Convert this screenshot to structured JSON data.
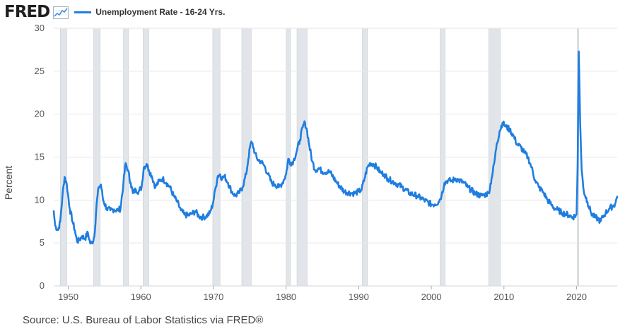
{
  "header": {
    "logo_text": "FRED",
    "logo_icon": "line-chart-icon",
    "series_label": "Unemployment Rate - 16-24 Yrs."
  },
  "source": "Source: U.S. Bureau of Labor Statistics via FRED®",
  "colors": {
    "series": "#1f7de0",
    "recession": "#e1e5ea",
    "grid": "#e6e6e6",
    "text": "#444444"
  },
  "chart_data": {
    "type": "line",
    "title": "Unemployment Rate - 16-24 Yrs.",
    "xlabel": "",
    "ylabel": "Percent",
    "xlim": [
      1948,
      2025.6
    ],
    "ylim": [
      0,
      30
    ],
    "x_ticks": [
      "1950",
      "1960",
      "1970",
      "1980",
      "1990",
      "2000",
      "2010",
      "2020"
    ],
    "y_ticks": [
      "0",
      "5",
      "10",
      "15",
      "20",
      "25",
      "30"
    ],
    "grid": true,
    "legend": "top-left",
    "recessions": [
      [
        1948.9,
        1949.8
      ],
      [
        1953.5,
        1954.4
      ],
      [
        1957.6,
        1958.3
      ],
      [
        1960.3,
        1961.1
      ],
      [
        1969.9,
        1970.9
      ],
      [
        1973.9,
        1975.2
      ],
      [
        1980.0,
        1980.6
      ],
      [
        1981.5,
        1982.9
      ],
      [
        1990.5,
        1991.2
      ],
      [
        2001.2,
        2001.9
      ],
      [
        2007.9,
        2009.5
      ],
      [
        2020.1,
        2020.3
      ]
    ],
    "series": [
      {
        "name": "Unemployment Rate - 16-24 Yrs.",
        "x": [
          1948.0,
          1948.2,
          1948.6,
          1948.9,
          1949.2,
          1949.5,
          1949.8,
          1950.2,
          1950.6,
          1950.9,
          1951.2,
          1951.5,
          1951.9,
          1952.3,
          1952.7,
          1953.0,
          1953.3,
          1953.6,
          1953.9,
          1954.2,
          1954.5,
          1954.8,
          1955.3,
          1955.8,
          1956.3,
          1956.8,
          1957.2,
          1957.6,
          1957.9,
          1958.2,
          1958.6,
          1958.9,
          1959.3,
          1959.7,
          1960.1,
          1960.4,
          1960.8,
          1961.1,
          1961.5,
          1962.0,
          1962.5,
          1963.0,
          1963.5,
          1964.0,
          1964.5,
          1965.0,
          1965.5,
          1966.0,
          1966.5,
          1967.0,
          1967.5,
          1968.0,
          1968.5,
          1969.0,
          1969.5,
          1969.9,
          1970.3,
          1970.6,
          1970.9,
          1971.2,
          1971.5,
          1972.0,
          1972.5,
          1973.0,
          1973.5,
          1974.0,
          1974.5,
          1974.8,
          1975.1,
          1975.3,
          1975.7,
          1976.0,
          1976.5,
          1977.0,
          1977.5,
          1978.0,
          1978.5,
          1979.0,
          1979.5,
          1980.0,
          1980.3,
          1980.6,
          1981.0,
          1981.5,
          1981.9,
          1982.3,
          1982.6,
          1982.9,
          1983.2,
          1983.6,
          1984.0,
          1984.5,
          1985.0,
          1986.0,
          1987.0,
          1988.0,
          1989.0,
          1989.5,
          1990.0,
          1990.4,
          1990.8,
          1991.2,
          1991.6,
          1992.0,
          1992.5,
          1993.0,
          1993.5,
          1994.0,
          1995.0,
          1996.0,
          1997.0,
          1998.0,
          1999.0,
          2000.0,
          2000.5,
          2001.0,
          2001.4,
          2001.8,
          2002.3,
          2002.8,
          2003.3,
          2003.8,
          2004.5,
          2005.0,
          2006.0,
          2006.8,
          2007.3,
          2007.9,
          2008.3,
          2008.7,
          2009.0,
          2009.4,
          2009.8,
          2010.3,
          2010.8,
          2011.3,
          2011.8,
          2012.3,
          2012.8,
          2013.3,
          2013.8,
          2014.3,
          2014.8,
          2015.5,
          2016.0,
          2016.5,
          2017.0,
          2017.5,
          2018.0,
          2018.5,
          2019.0,
          2019.5,
          2020.0,
          2020.15,
          2020.3,
          2020.5,
          2020.7,
          2021.0,
          2021.5,
          2022.0,
          2022.5,
          2023.0,
          2023.3,
          2023.6,
          2024.0,
          2024.5,
          2025.0,
          2025.3,
          2025.6
        ],
        "y": [
          8.7,
          7.0,
          6.5,
          7.5,
          10.5,
          12.7,
          11.8,
          9.0,
          7.5,
          6.5,
          5.2,
          5.3,
          5.8,
          5.5,
          6.2,
          5.0,
          5.0,
          5.8,
          9.5,
          11.5,
          11.8,
          10.0,
          9.0,
          8.8,
          8.9,
          8.8,
          9.0,
          12.0,
          14.3,
          13.5,
          12.0,
          10.8,
          11.2,
          11.0,
          11.5,
          13.8,
          14.2,
          13.5,
          12.8,
          11.5,
          12.2,
          12.5,
          12.0,
          11.5,
          10.5,
          9.8,
          8.8,
          8.3,
          8.2,
          8.4,
          8.7,
          8.1,
          8.0,
          8.1,
          8.5,
          9.5,
          11.5,
          12.8,
          13.0,
          12.5,
          12.8,
          12.0,
          11.0,
          10.5,
          10.8,
          11.5,
          13.0,
          14.8,
          16.5,
          16.7,
          15.5,
          14.8,
          14.5,
          14.0,
          13.0,
          12.0,
          11.8,
          11.5,
          12.0,
          13.0,
          14.8,
          14.3,
          14.5,
          15.8,
          17.0,
          18.5,
          19.0,
          18.0,
          16.3,
          14.5,
          13.5,
          13.7,
          13.3,
          13.3,
          12.0,
          11.0,
          10.8,
          10.8,
          11.0,
          11.2,
          12.5,
          13.8,
          14.3,
          14.2,
          13.8,
          13.2,
          13.0,
          12.5,
          12.0,
          11.5,
          10.8,
          10.5,
          10.0,
          9.5,
          9.5,
          9.8,
          10.5,
          12.0,
          12.3,
          12.2,
          12.5,
          12.3,
          12.0,
          11.5,
          10.8,
          10.5,
          10.6,
          10.8,
          12.5,
          14.5,
          16.5,
          18.0,
          19.0,
          18.5,
          18.2,
          17.5,
          16.5,
          16.2,
          15.5,
          15.0,
          13.8,
          12.3,
          11.5,
          10.8,
          10.0,
          9.5,
          9.0,
          8.8,
          8.5,
          8.4,
          8.2,
          8.0,
          8.3,
          14.0,
          27.3,
          19.0,
          13.5,
          11.0,
          9.8,
          8.5,
          8.0,
          7.8,
          7.5,
          8.0,
          8.5,
          9.0,
          9.3,
          9.5,
          10.4
        ]
      }
    ]
  }
}
